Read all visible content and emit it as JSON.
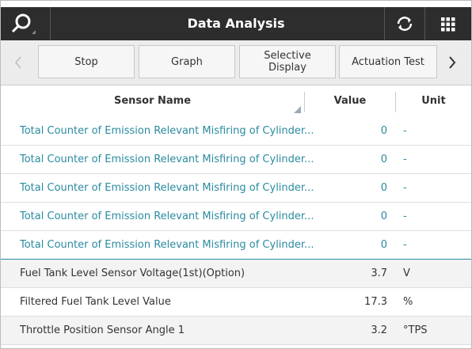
{
  "header": {
    "title": "Data Analysis"
  },
  "toolbar": {
    "buttons": [
      "Stop",
      "Graph",
      "Selective Display",
      "Actuation Test"
    ]
  },
  "table": {
    "columns": [
      "Sensor Name",
      "Value",
      "Unit"
    ],
    "rows": [
      [
        "Total Counter of Emission Relevant Misfiring of Cylinder...",
        0,
        "-"
      ],
      [
        "Total Counter of Emission Relevant Misfiring of Cylinder...",
        0,
        "-"
      ],
      [
        "Total Counter of Emission Relevant Misfiring of Cylinder...",
        0,
        "-"
      ],
      [
        "Total Counter of Emission Relevant Misfiring of Cylinder...",
        0,
        "-"
      ],
      [
        "Total Counter of Emission Relevant Misfiring of Cylinder...",
        0,
        "-"
      ],
      [
        "Fuel Tank Level Sensor Voltage(1st)(Option)",
        3.7,
        "V"
      ],
      [
        "Filtered Fuel Tank Level Value",
        17.3,
        "%"
      ],
      [
        "Throttle Position Sensor Angle 1",
        3.2,
        "°TPS"
      ]
    ]
  }
}
